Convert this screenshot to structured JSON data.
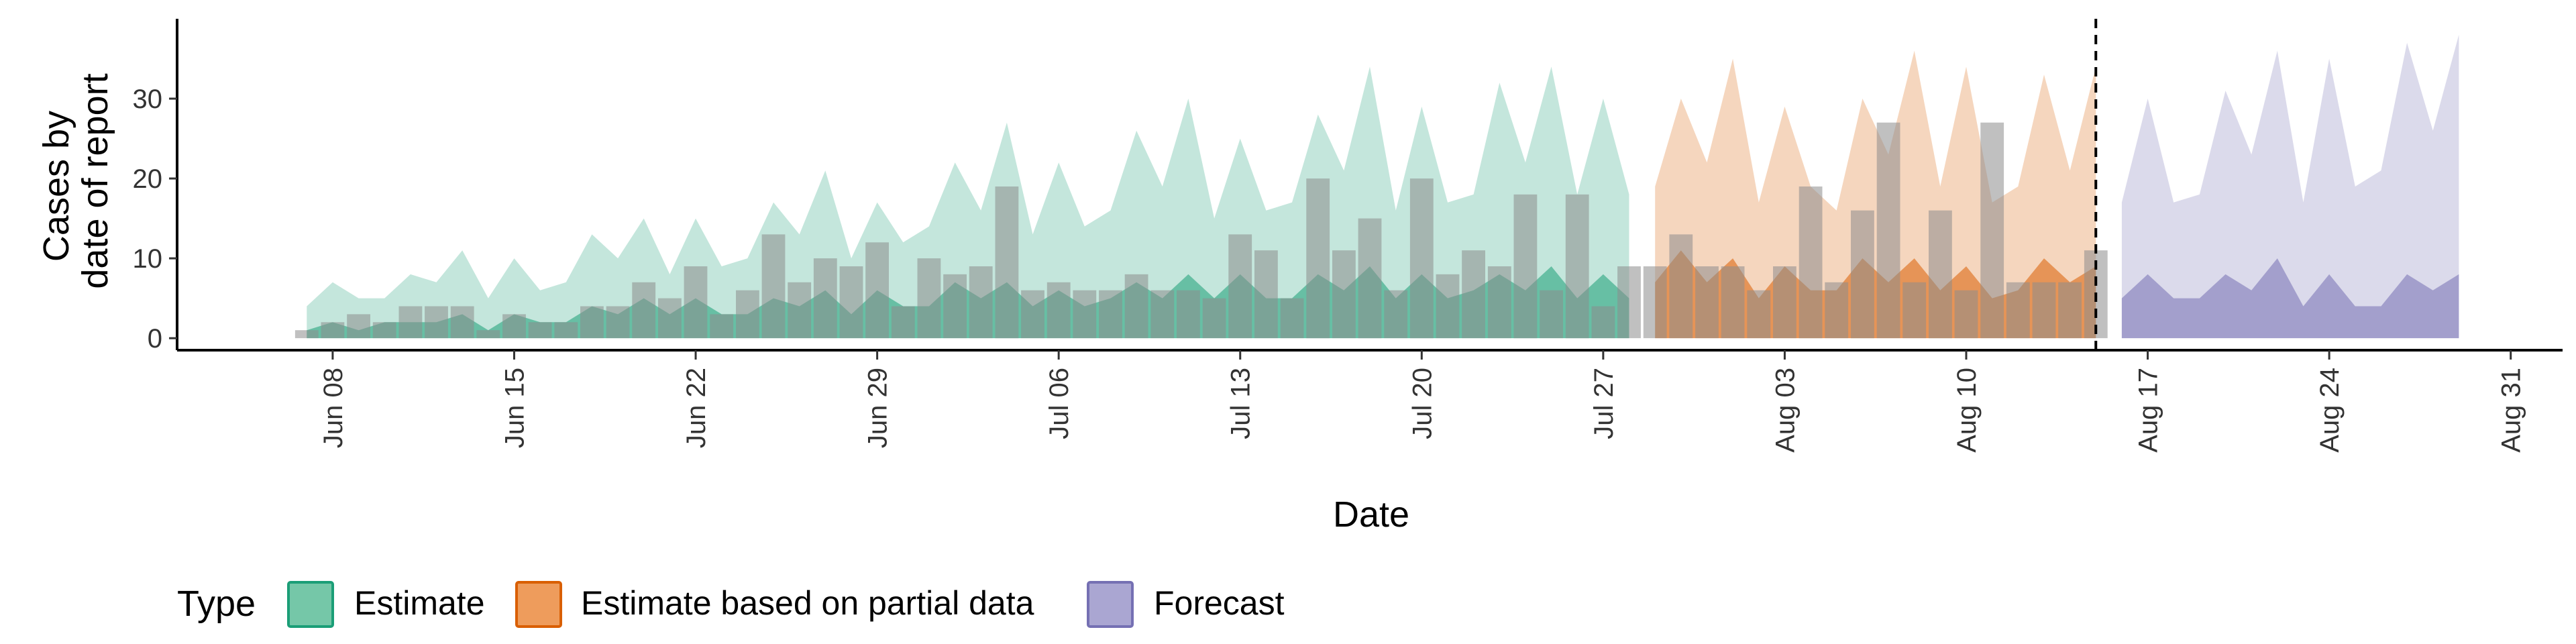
{
  "chart_data": {
    "type": "area",
    "xlabel": "Date",
    "ylabel_lines": [
      "Cases by",
      "date of report"
    ],
    "x_ticks": [
      "Jun 08",
      "Jun 15",
      "Jun 22",
      "Jun 29",
      "Jul 06",
      "Jul 13",
      "Jul 20",
      "Jul 27",
      "Aug 03",
      "Aug 10",
      "Aug 17",
      "Aug 24",
      "Aug 31"
    ],
    "x_tick_days": [
      -7,
      0,
      7,
      14,
      21,
      28,
      35,
      42,
      49,
      56,
      63,
      70,
      77
    ],
    "y_ticks": [
      0,
      10,
      20,
      30
    ],
    "ylim": [
      -1.5,
      40
    ],
    "xlim": [
      "Jun 02",
      "Sep 02"
    ],
    "forecast_date": "Aug 15",
    "grid": false,
    "legend": {
      "title": "Type",
      "position": "bottom",
      "entries": [
        {
          "label": "Estimate",
          "fill": "#75c7a8",
          "stroke": "#1b9e77"
        },
        {
          "label": "Estimate based on partial data",
          "fill": "#ee9c5c",
          "stroke": "#d95f02"
        },
        {
          "label": "Forecast",
          "fill": "#aaa6d2",
          "stroke": "#7570b3"
        }
      ]
    },
    "colors": {
      "estimate": "#1b9e77",
      "partial": "#d95f02",
      "forecast": "#7570b3",
      "bars": "#8c8c8c",
      "dashed_line": "#000000"
    },
    "series": [
      {
        "name": "Estimate",
        "start": "Jun 07",
        "upper": [
          4,
          7,
          5,
          5,
          8,
          7,
          11,
          5,
          10,
          6,
          7,
          13,
          10,
          15,
          8,
          15,
          9,
          10,
          17,
          13,
          21,
          10,
          17,
          12,
          14,
          22,
          16,
          27,
          13,
          22,
          14,
          16,
          26,
          19,
          30,
          15,
          25,
          16,
          17,
          28,
          21,
          34,
          16,
          29,
          17,
          18,
          32,
          22,
          34,
          18,
          30,
          18
        ],
        "median": [
          1,
          2,
          1,
          2,
          2,
          2,
          3,
          1,
          3,
          2,
          2,
          4,
          3,
          5,
          3,
          5,
          3,
          3,
          5,
          4,
          6,
          3,
          6,
          4,
          4,
          7,
          5,
          7,
          4,
          6,
          4,
          5,
          7,
          5,
          8,
          5,
          8,
          5,
          5,
          8,
          6,
          9,
          5,
          8,
          5,
          6,
          8,
          6,
          9,
          5,
          8,
          5
        ],
        "lower": [
          0,
          1,
          0.5,
          1,
          1,
          1,
          1.5,
          0.5,
          1.5,
          1,
          1,
          2,
          1.5,
          2.5,
          1.5,
          2.5,
          1.5,
          1.5,
          2.5,
          2,
          3,
          1.5,
          3,
          2,
          2,
          3.5,
          2.5,
          3.5,
          2,
          3,
          2,
          2.5,
          3.5,
          2.5,
          4,
          2.5,
          4,
          2.5,
          2.5,
          4,
          3,
          4.5,
          2.5,
          4,
          2.5,
          3,
          4,
          3,
          4.5,
          2.5,
          4,
          2.5
        ]
      },
      {
        "name": "Estimate based on partial data",
        "start": "Jul 29",
        "upper": [
          19,
          30,
          22,
          35,
          17,
          29,
          19,
          16,
          30,
          23,
          36,
          19,
          34,
          17,
          19,
          33,
          21,
          34
        ],
        "median": [
          7,
          11,
          7,
          10,
          5,
          9,
          6,
          6,
          10,
          7,
          10,
          6,
          9,
          5,
          6,
          10,
          7,
          9
        ],
        "lower": [
          3.5,
          5.5,
          3.5,
          5,
          2.5,
          4.5,
          3,
          3,
          5,
          3.5,
          5,
          3,
          4.5,
          2.5,
          3,
          5,
          3.5,
          4.5
        ]
      },
      {
        "name": "Forecast",
        "start": "Aug 16",
        "upper": [
          17,
          30,
          17,
          18,
          31,
          23,
          36,
          17,
          35,
          19,
          21,
          37,
          26,
          38
        ],
        "median": [
          5,
          8,
          5,
          5,
          8,
          6,
          10,
          4,
          8,
          4,
          4,
          8,
          6,
          8
        ],
        "lower": [
          2.5,
          4,
          2.5,
          2.5,
          4,
          3,
          5,
          2,
          4,
          2,
          2,
          4,
          3,
          4
        ]
      }
    ],
    "reported_cases": {
      "start": "Jun 07",
      "values": [
        1,
        2,
        3,
        2,
        4,
        4,
        4,
        1,
        3,
        2,
        2,
        4,
        4,
        7,
        5,
        9,
        3,
        6,
        13,
        7,
        10,
        9,
        12,
        4,
        10,
        8,
        9,
        19,
        6,
        7,
        6,
        6,
        8,
        6,
        6,
        5,
        13,
        11,
        5,
        20,
        11,
        15,
        6,
        20,
        8,
        11,
        9,
        18,
        6,
        18,
        4,
        9,
        9,
        13,
        9,
        9,
        6,
        9,
        19,
        7,
        16,
        27,
        7,
        16,
        6,
        27,
        7,
        7,
        7,
        11
      ]
    }
  }
}
